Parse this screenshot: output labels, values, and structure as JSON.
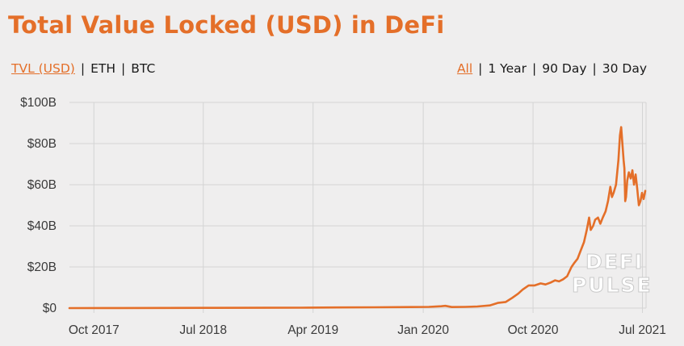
{
  "title": "Total Value Locked (USD) in DeFi",
  "metric_tabs": [
    {
      "label": "TVL (USD)",
      "active": true
    },
    {
      "label": "ETH",
      "active": false
    },
    {
      "label": "BTC",
      "active": false
    }
  ],
  "range_tabs": [
    {
      "label": "All",
      "active": true
    },
    {
      "label": "1 Year",
      "active": false
    },
    {
      "label": "90 Day",
      "active": false
    },
    {
      "label": "30 Day",
      "active": false
    }
  ],
  "separator": "|",
  "watermark": {
    "line1": "DEFI",
    "line2": "PULSE"
  },
  "colors": {
    "accent": "#e46f29",
    "line": "#e46f29",
    "grid": "#d4d4d4",
    "background": "#efeeee"
  },
  "chart_data": {
    "type": "line",
    "title": "Total Value Locked (USD) in DeFi",
    "xlabel": "",
    "ylabel": "",
    "x_range": [
      "2017-08-01",
      "2021-07-10"
    ],
    "ylim": [
      0,
      100
    ],
    "y_unit": "billion USD",
    "y_ticks": [
      0,
      20,
      40,
      60,
      80,
      100
    ],
    "y_tick_labels": [
      "$0",
      "$20B",
      "$40B",
      "$60B",
      "$80B",
      "$100B"
    ],
    "x_ticks": [
      "2017-10-01",
      "2018-07-01",
      "2019-04-01",
      "2020-01-01",
      "2020-10-01",
      "2021-07-01"
    ],
    "x_tick_labels": [
      "Oct 2017",
      "Jul 2018",
      "Apr 2019",
      "Jan 2020",
      "Oct 2020",
      "Jul 2021"
    ],
    "grid": true,
    "legend": "none",
    "series": [
      {
        "points": [
          [
            "2017-08-01",
            0.0
          ],
          [
            "2017-12-01",
            0.02
          ],
          [
            "2018-04-01",
            0.08
          ],
          [
            "2018-08-01",
            0.1
          ],
          [
            "2018-12-01",
            0.15
          ],
          [
            "2019-03-01",
            0.2
          ],
          [
            "2019-06-01",
            0.3
          ],
          [
            "2019-09-01",
            0.4
          ],
          [
            "2019-12-01",
            0.5
          ],
          [
            "2020-01-15",
            0.6
          ],
          [
            "2020-02-15",
            0.9
          ],
          [
            "2020-02-25",
            1.1
          ],
          [
            "2020-03-12",
            0.5
          ],
          [
            "2020-04-15",
            0.6
          ],
          [
            "2020-05-15",
            0.8
          ],
          [
            "2020-06-15",
            1.3
          ],
          [
            "2020-07-05",
            2.5
          ],
          [
            "2020-07-25",
            3.0
          ],
          [
            "2020-08-10",
            5.0
          ],
          [
            "2020-08-25",
            7.0
          ],
          [
            "2020-09-05",
            9.0
          ],
          [
            "2020-09-20",
            11.0
          ],
          [
            "2020-10-05",
            11.0
          ],
          [
            "2020-10-20",
            12.0
          ],
          [
            "2020-11-01",
            11.5
          ],
          [
            "2020-11-15",
            12.5
          ],
          [
            "2020-11-25",
            13.5
          ],
          [
            "2020-12-05",
            13.0
          ],
          [
            "2020-12-15",
            14.0
          ],
          [
            "2020-12-25",
            15.5
          ],
          [
            "2021-01-05",
            20.0
          ],
          [
            "2021-01-12",
            22.0
          ],
          [
            "2021-01-20",
            24.0
          ],
          [
            "2021-01-28",
            28.0
          ],
          [
            "2021-02-05",
            32.0
          ],
          [
            "2021-02-12",
            38.0
          ],
          [
            "2021-02-18",
            44.0
          ],
          [
            "2021-02-22",
            38.0
          ],
          [
            "2021-02-28",
            40.0
          ],
          [
            "2021-03-05",
            43.0
          ],
          [
            "2021-03-12",
            44.0
          ],
          [
            "2021-03-18",
            41.0
          ],
          [
            "2021-03-24",
            44.0
          ],
          [
            "2021-03-31",
            47.0
          ],
          [
            "2021-04-06",
            52.0
          ],
          [
            "2021-04-12",
            59.0
          ],
          [
            "2021-04-16",
            54.0
          ],
          [
            "2021-04-20",
            56.0
          ],
          [
            "2021-04-26",
            60.0
          ],
          [
            "2021-05-02",
            72.0
          ],
          [
            "2021-05-06",
            84.0
          ],
          [
            "2021-05-09",
            88.0
          ],
          [
            "2021-05-12",
            80.0
          ],
          [
            "2021-05-15",
            72.0
          ],
          [
            "2021-05-17",
            68.0
          ],
          [
            "2021-05-19",
            52.0
          ],
          [
            "2021-05-21",
            54.0
          ],
          [
            "2021-05-24",
            62.0
          ],
          [
            "2021-05-28",
            66.0
          ],
          [
            "2021-06-02",
            63.0
          ],
          [
            "2021-06-06",
            67.0
          ],
          [
            "2021-06-10",
            60.0
          ],
          [
            "2021-06-14",
            65.0
          ],
          [
            "2021-06-18",
            58.0
          ],
          [
            "2021-06-22",
            50.0
          ],
          [
            "2021-06-26",
            52.0
          ],
          [
            "2021-06-30",
            56.0
          ],
          [
            "2021-07-04",
            53.0
          ],
          [
            "2021-07-08",
            57.0
          ]
        ]
      }
    ]
  }
}
